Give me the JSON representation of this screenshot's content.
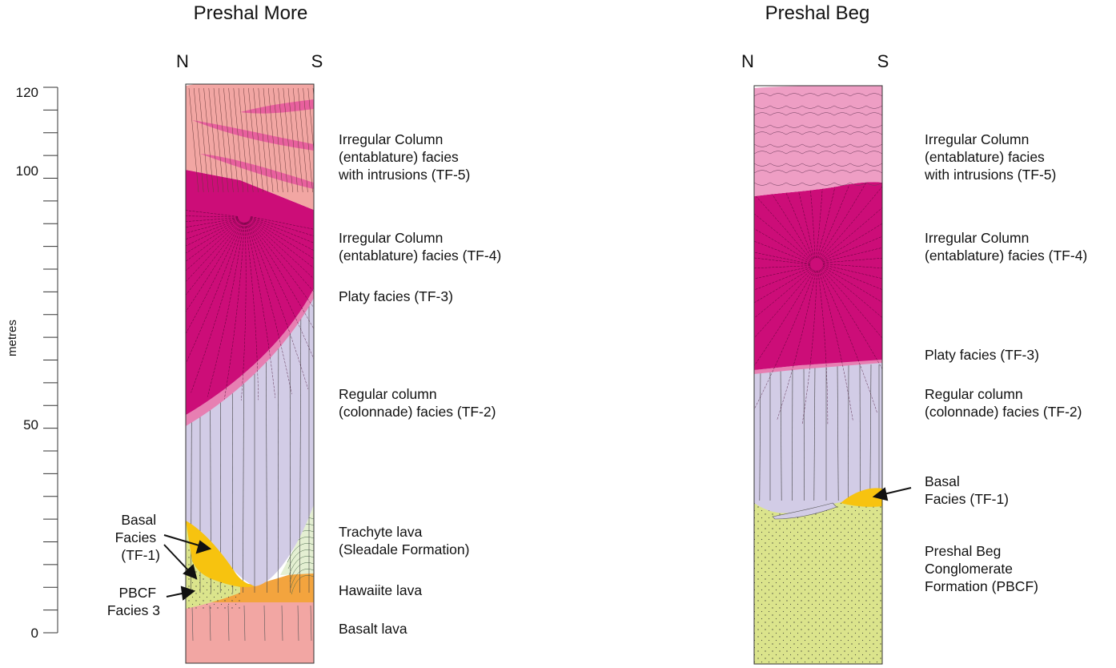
{
  "scale": {
    "label": "metres",
    "ticks": [
      {
        "value": 120,
        "text": "120"
      },
      {
        "value": 100,
        "text": "100"
      },
      {
        "value": 50,
        "text": "50"
      },
      {
        "value": 0,
        "text": "0"
      }
    ]
  },
  "sections": [
    {
      "title": "Preshal More",
      "north": "N",
      "south": "S",
      "labels": [
        {
          "lines": [
            "Irregular Column",
            "(entablature) facies",
            "with intrusions (TF-5)"
          ]
        },
        {
          "lines": [
            "Irregular Column",
            "(entablature) facies (TF-4)"
          ]
        },
        {
          "lines": [
            "Platy facies (TF-3)"
          ]
        },
        {
          "lines": [
            "Regular column",
            "(colonnade) facies (TF-2)"
          ]
        },
        {
          "lines": [
            "Trachyte lava",
            "(Sleadale Formation)"
          ]
        },
        {
          "lines": [
            "Hawaiite lava"
          ]
        },
        {
          "lines": [
            "Basalt lava"
          ]
        }
      ],
      "left_labels": [
        {
          "lines": [
            "Basal",
            "Facies",
            "(TF-1)"
          ]
        },
        {
          "lines": [
            "PBCF",
            "Facies 3"
          ]
        }
      ]
    },
    {
      "title": "Preshal Beg",
      "north": "N",
      "south": "S",
      "labels": [
        {
          "lines": [
            "Irregular Column",
            "(entablature) facies",
            "with intrusions (TF-5)"
          ]
        },
        {
          "lines": [
            "Irregular Column",
            "(entablature) facies (TF-4)"
          ]
        },
        {
          "lines": [
            "Platy facies (TF-3)"
          ]
        },
        {
          "lines": [
            "Regular column",
            "(colonnade) facies (TF-2)"
          ]
        },
        {
          "lines": [
            "Basal",
            "Facies (TF-1)"
          ]
        },
        {
          "lines": [
            "Preshal Beg",
            "Conglomerate",
            "Formation (PBCF)"
          ]
        }
      ]
    }
  ],
  "colors": {
    "tf5": "#f2a6a3",
    "tf5_pb": "#ee9ec4",
    "tf5_intrusion": "#e8609e",
    "tf4": "#cc0d78",
    "tf3": "#e77fb2",
    "tf2": "#d2cce6",
    "tf1": "#f7c30f",
    "trachyte": "#e4efd2",
    "hawaiite": "#f3a43e",
    "basalt": "#f2a6a3",
    "pbcf": "#dbe48c"
  }
}
